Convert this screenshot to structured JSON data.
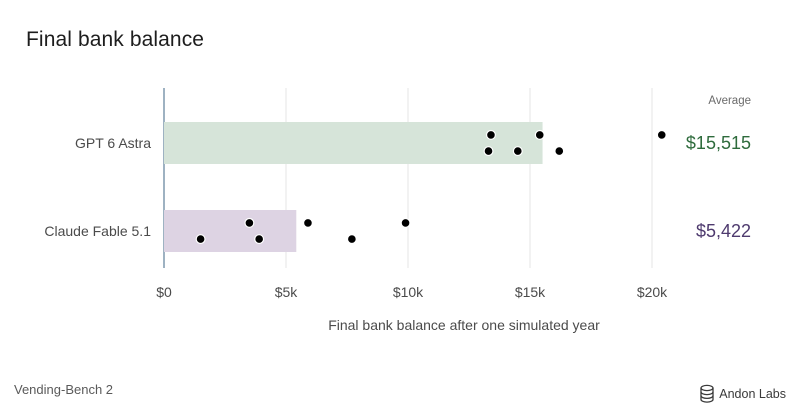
{
  "page": {
    "title": "Final bank balance",
    "footer_left": "Vending-Bench 2",
    "brand": "Andon Labs",
    "logo_icon": "stacked-coins-icon"
  },
  "chart_data": {
    "type": "bar",
    "orientation": "horizontal",
    "title": "Final bank balance",
    "xlabel": "Final bank balance after one simulated year",
    "ylabel": "",
    "xlim": [
      0,
      24000
    ],
    "xticks": [
      0,
      5000,
      10000,
      15000,
      20000
    ],
    "xtick_labels": [
      "$0",
      "$5k",
      "$10k",
      "$15k",
      "$20k"
    ],
    "grid": "vertical",
    "average_header": "Average",
    "categories": [
      "GPT 6 Astra",
      "Claude Fable 5.1"
    ],
    "values": [
      15515,
      5422
    ],
    "value_labels": [
      "$15,515",
      "$5,422"
    ],
    "colors": {
      "bar_fills": [
        "#d6e4d9",
        "#ddd3e3"
      ],
      "value_text": [
        "#2e6b3c",
        "#4e3a6e"
      ],
      "points": "#000000",
      "grid": "#e4e4e4",
      "axis": "#5e7e9a"
    },
    "points": [
      [
        {
          "x": 13400,
          "y": 0.3
        },
        {
          "x": 15400,
          "y": 0.3
        },
        {
          "x": 20400,
          "y": 0.3
        },
        {
          "x": 13300,
          "y": -0.3
        },
        {
          "x": 14500,
          "y": -0.3
        },
        {
          "x": 16200,
          "y": -0.3
        }
      ],
      [
        {
          "x": 3500,
          "y": 0.3
        },
        {
          "x": 5900,
          "y": 0.3
        },
        {
          "x": 9900,
          "y": 0.3
        },
        {
          "x": 1500,
          "y": -0.3
        },
        {
          "x": 3900,
          "y": -0.3
        },
        {
          "x": 7700,
          "y": -0.3
        }
      ]
    ]
  }
}
